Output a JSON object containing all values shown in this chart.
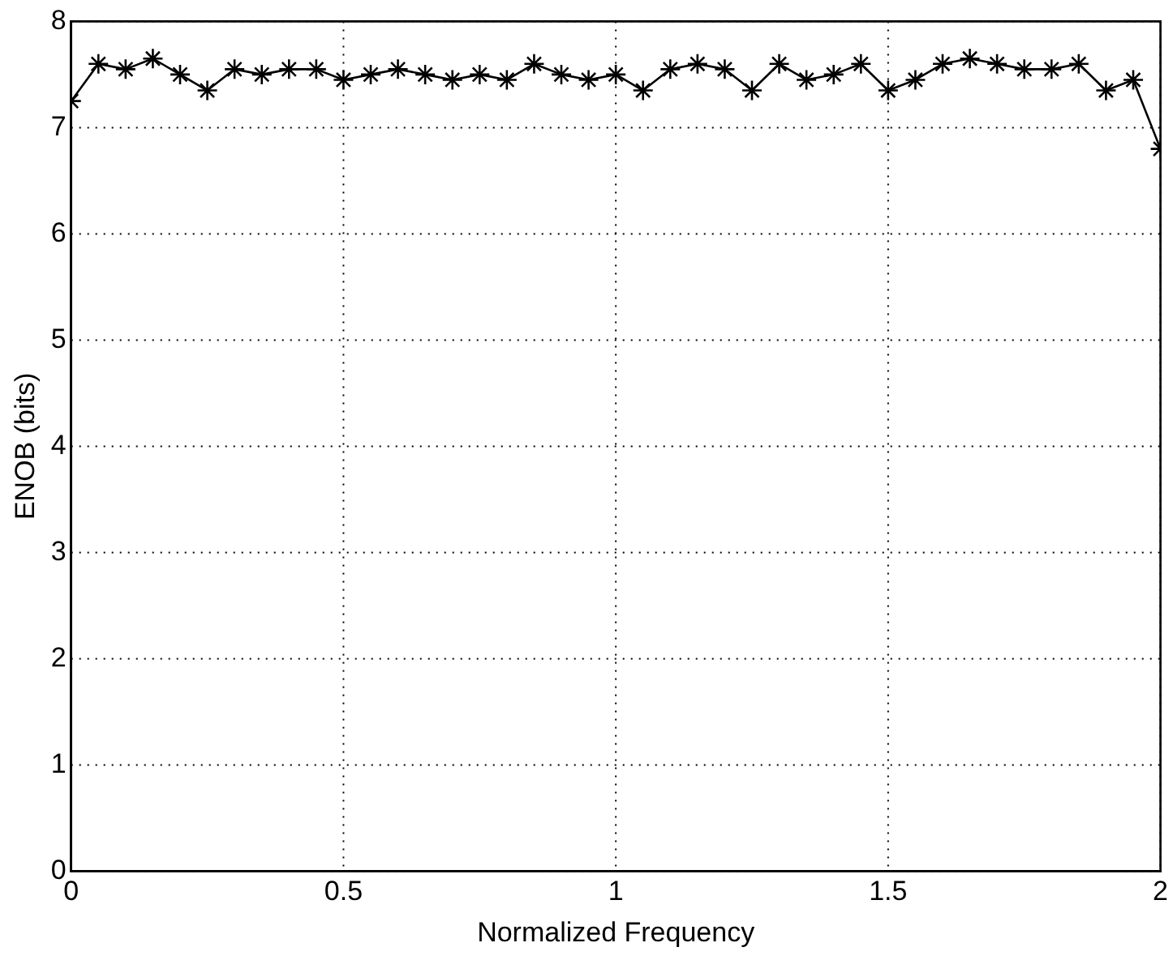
{
  "chart_data": {
    "type": "line",
    "xlabel": "Normalized Frequency",
    "ylabel": "ENOB (bits)",
    "x": [
      0,
      0.05,
      0.1,
      0.15,
      0.2,
      0.25,
      0.3,
      0.35,
      0.4,
      0.45,
      0.5,
      0.55,
      0.6,
      0.65,
      0.7,
      0.75,
      0.8,
      0.85,
      0.9,
      0.95,
      1,
      1.05,
      1.1,
      1.15,
      1.2,
      1.25,
      1.3,
      1.35,
      1.4,
      1.45,
      1.5,
      1.55,
      1.6,
      1.65,
      1.7,
      1.75,
      1.8,
      1.85,
      1.9,
      1.95,
      2
    ],
    "series": [
      {
        "color": "#000000",
        "values": [
          7.25,
          7.6,
          7.55,
          7.65,
          7.5,
          7.35,
          7.55,
          7.5,
          7.55,
          7.55,
          7.45,
          7.5,
          7.55,
          7.5,
          7.45,
          7.5,
          7.45,
          7.6,
          7.5,
          7.45,
          7.5,
          7.35,
          7.55,
          7.6,
          7.55,
          7.35,
          7.6,
          7.45,
          7.5,
          7.6,
          7.35,
          7.45,
          7.6,
          7.65,
          7.6,
          7.55,
          7.55,
          7.6,
          7.35,
          7.45,
          6.8
        ]
      }
    ],
    "xlim": [
      0,
      2
    ],
    "xticks": [
      0,
      0.5,
      1,
      1.5,
      2
    ],
    "ylim": [
      0,
      8
    ],
    "yticks": [
      0,
      1,
      2,
      3,
      4,
      5,
      6,
      7,
      8
    ],
    "grid": true,
    "marker": "cross",
    "line_style": "solid",
    "legend": false
  }
}
